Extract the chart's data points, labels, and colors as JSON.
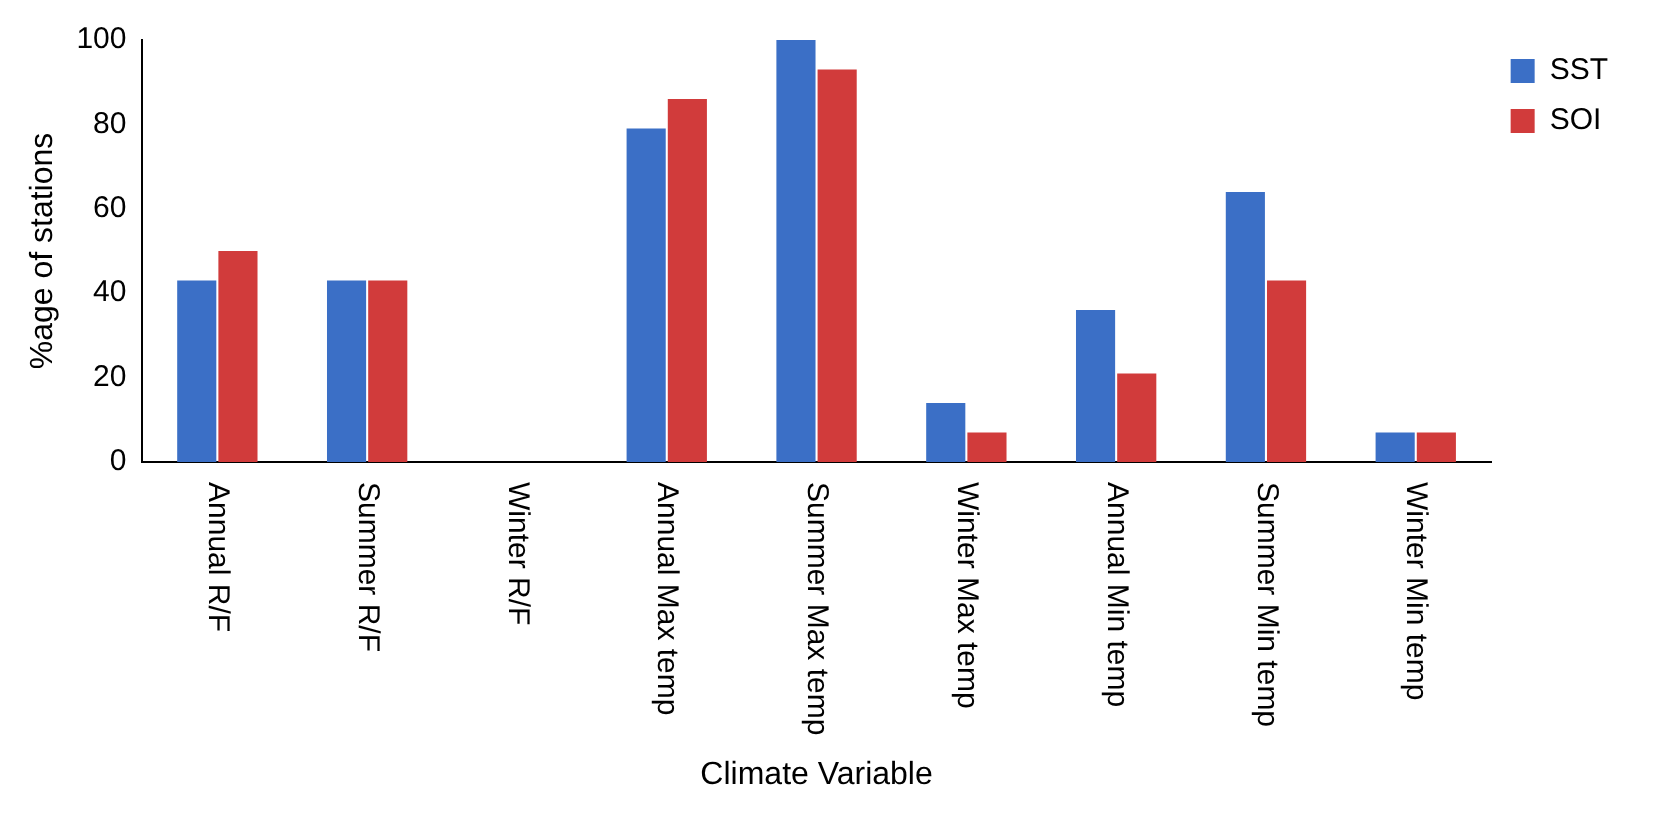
{
  "chart_data": {
    "type": "bar",
    "xlabel": "Climate Variable",
    "ylabel": "%age of stations",
    "categories": [
      "Annual R/F",
      "Summer R/F",
      "Winter R/F",
      "Annual Max temp",
      "Summer Max temp",
      "Winter Max temp",
      "Annual Min temp",
      "Summer Min temp",
      "Winter Min temp"
    ],
    "series": [
      {
        "name": "SST",
        "color": "#3b6fc6",
        "values": [
          43,
          43,
          0,
          79,
          100,
          14,
          36,
          64,
          7
        ]
      },
      {
        "name": "SOI",
        "color": "#d13b3b",
        "values": [
          50,
          43,
          0,
          86,
          93,
          7,
          21,
          43,
          7
        ]
      }
    ],
    "ylim": [
      0,
      100
    ],
    "yticks": [
      0,
      20,
      40,
      60,
      80,
      100
    ],
    "grid": false,
    "legend": "top right"
  }
}
